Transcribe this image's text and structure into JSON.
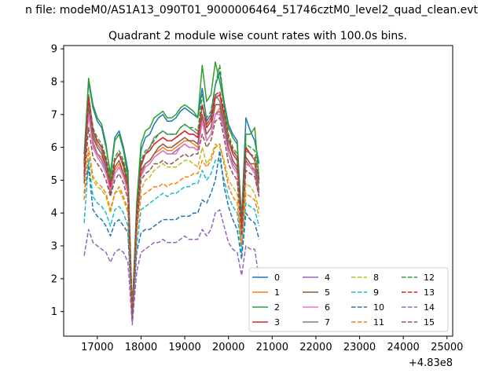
{
  "figure": {
    "suptitle": "n file: modeM0/AS1A13_090T01_9000006464_51746cztM0_level2_quad_clean.evt",
    "title": "Quadrant 2 module wise count rates with 100.0s bins.",
    "offset_label": "+4.83e8"
  },
  "chart_data": {
    "type": "line",
    "title": "Quadrant 2 module wise count rates with 100.0s bins.",
    "xlabel": "",
    "ylabel": "",
    "x_offset": 483000000,
    "xlim": [
      16230,
      25130
    ],
    "ylim": [
      0.25,
      9.1
    ],
    "x_ticks": [
      17000,
      18000,
      19000,
      20000,
      21000,
      22000,
      23000,
      24000,
      25000
    ],
    "y_ticks": [
      1,
      2,
      3,
      4,
      5,
      6,
      7,
      8,
      9
    ],
    "x_start": 16700,
    "x_step": 100,
    "n_points": 41,
    "grid": false,
    "legend": {
      "placement": "lower right",
      "columns": 4
    },
    "series": [
      {
        "name": "0",
        "color": "#1f77b4",
        "dash": "solid",
        "values": [
          5.8,
          8.0,
          7.2,
          6.8,
          6.6,
          6.0,
          5.2,
          6.3,
          6.5,
          6.0,
          5.3,
          1.0,
          4.0,
          5.9,
          6.3,
          6.4,
          6.7,
          6.9,
          7.0,
          6.8,
          6.8,
          6.9,
          7.1,
          7.2,
          7.1,
          7.0,
          6.9,
          7.8,
          6.8,
          7.0,
          7.9,
          8.3,
          7.4,
          6.7,
          6.4,
          6.2,
          3.8,
          6.9,
          6.5,
          6.2,
          5.5
        ]
      },
      {
        "name": "1",
        "color": "#ff7f0e",
        "dash": "solid",
        "values": [
          5.4,
          7.0,
          6.2,
          5.8,
          5.7,
          5.4,
          4.9,
          5.3,
          5.5,
          5.2,
          4.8,
          0.8,
          3.6,
          5.2,
          5.5,
          5.6,
          5.8,
          5.9,
          6.0,
          5.9,
          5.9,
          6.0,
          6.1,
          6.2,
          6.2,
          6.1,
          6.0,
          6.9,
          6.2,
          6.4,
          7.0,
          7.2,
          6.7,
          6.0,
          5.6,
          5.4,
          3.4,
          5.7,
          5.5,
          5.3,
          4.6
        ]
      },
      {
        "name": "2",
        "color": "#2ca02c",
        "dash": "solid",
        "values": [
          5.6,
          8.1,
          7.3,
          6.9,
          6.7,
          6.1,
          5.1,
          6.2,
          6.4,
          5.9,
          5.1,
          1.0,
          4.3,
          6.1,
          6.5,
          6.6,
          6.9,
          7.0,
          7.1,
          6.9,
          6.9,
          7.0,
          7.2,
          7.3,
          7.2,
          7.1,
          6.9,
          8.5,
          7.4,
          7.6,
          8.6,
          8.0,
          7.3,
          6.6,
          6.3,
          6.1,
          3.7,
          6.4,
          6.4,
          6.6,
          5.0
        ]
      },
      {
        "name": "3",
        "color": "#d62728",
        "dash": "solid",
        "values": [
          5.5,
          7.6,
          6.5,
          6.2,
          6.0,
          5.6,
          4.9,
          5.6,
          5.8,
          5.5,
          4.9,
          0.9,
          3.9,
          5.5,
          5.8,
          5.9,
          6.1,
          6.2,
          6.3,
          6.2,
          6.2,
          6.3,
          6.4,
          6.5,
          6.4,
          6.4,
          6.3,
          7.3,
          6.6,
          6.8,
          7.5,
          7.6,
          7.0,
          6.2,
          5.8,
          5.6,
          3.6,
          6.0,
          5.8,
          5.6,
          4.9
        ]
      },
      {
        "name": "4",
        "color": "#9467bd",
        "dash": "solid",
        "values": [
          5.2,
          7.2,
          6.1,
          5.8,
          5.6,
          5.3,
          4.6,
          5.2,
          5.4,
          5.1,
          4.6,
          0.9,
          3.7,
          5.2,
          5.4,
          5.5,
          5.7,
          5.8,
          5.9,
          5.8,
          5.8,
          5.9,
          6.0,
          6.1,
          6.0,
          6.0,
          5.9,
          6.8,
          6.2,
          6.4,
          7.0,
          7.1,
          6.6,
          5.8,
          5.5,
          5.3,
          3.4,
          5.6,
          5.4,
          5.3,
          4.6
        ]
      },
      {
        "name": "5",
        "color": "#8c564b",
        "dash": "solid",
        "values": [
          5.1,
          7.3,
          6.3,
          6.0,
          5.8,
          5.4,
          4.6,
          5.4,
          5.6,
          5.2,
          4.6,
          0.8,
          3.8,
          5.3,
          5.5,
          5.6,
          5.8,
          6.0,
          6.1,
          6.0,
          6.0,
          6.1,
          6.2,
          6.3,
          6.2,
          6.2,
          6.1,
          7.0,
          6.4,
          6.6,
          7.3,
          7.3,
          6.8,
          6.0,
          5.6,
          5.4,
          3.5,
          5.7,
          5.5,
          5.5,
          4.7
        ]
      },
      {
        "name": "6",
        "color": "#e377c2",
        "dash": "solid",
        "values": [
          5.3,
          7.0,
          6.0,
          5.7,
          5.5,
          5.2,
          4.7,
          5.2,
          5.4,
          5.1,
          4.6,
          0.9,
          3.6,
          5.1,
          5.4,
          5.5,
          5.7,
          5.8,
          5.9,
          5.8,
          5.8,
          5.8,
          6.0,
          6.1,
          6.0,
          6.0,
          5.9,
          6.8,
          6.2,
          6.4,
          7.0,
          7.0,
          6.5,
          5.8,
          5.4,
          5.2,
          3.4,
          5.5,
          5.4,
          5.2,
          4.5
        ]
      },
      {
        "name": "7",
        "color": "#7f7f7f",
        "dash": "solid",
        "values": [
          5.0,
          7.4,
          6.4,
          6.1,
          5.9,
          5.5,
          4.8,
          5.6,
          5.8,
          5.4,
          4.8,
          0.9,
          3.9,
          5.4,
          5.8,
          6.0,
          6.3,
          6.4,
          6.5,
          6.4,
          6.4,
          6.4,
          6.6,
          6.7,
          6.6,
          6.5,
          6.4,
          7.3,
          6.7,
          6.9,
          7.6,
          7.4,
          6.9,
          6.2,
          5.9,
          5.7,
          3.6,
          5.9,
          5.8,
          5.6,
          4.9
        ]
      },
      {
        "name": "8",
        "color": "#bcbd22",
        "dash": "dashed",
        "values": [
          4.6,
          5.8,
          5.0,
          4.8,
          4.7,
          4.5,
          4.0,
          4.6,
          4.7,
          4.4,
          4.0,
          0.8,
          3.3,
          4.7,
          5.0,
          5.1,
          5.3,
          5.4,
          5.5,
          5.4,
          5.4,
          5.4,
          5.5,
          5.6,
          5.6,
          5.5,
          5.4,
          6.0,
          5.5,
          5.7,
          6.1,
          6.0,
          5.6,
          5.0,
          4.8,
          4.6,
          3.0,
          4.9,
          4.8,
          4.6,
          4.1
        ]
      },
      {
        "name": "9",
        "color": "#17becf",
        "dash": "dashed",
        "values": [
          3.7,
          5.6,
          4.5,
          4.3,
          4.2,
          4.0,
          3.6,
          4.1,
          4.2,
          4.0,
          3.6,
          0.7,
          3.0,
          4.1,
          4.2,
          4.3,
          4.4,
          4.5,
          4.6,
          4.5,
          4.6,
          4.6,
          4.7,
          4.8,
          4.8,
          4.9,
          4.9,
          5.3,
          5.0,
          5.2,
          5.6,
          5.6,
          5.0,
          4.5,
          4.2,
          4.0,
          2.8,
          4.3,
          4.2,
          4.1,
          3.6
        ]
      },
      {
        "name": "10",
        "color": "#1f77b4",
        "dash": "dashed",
        "values": [
          4.6,
          5.4,
          4.1,
          3.9,
          3.8,
          3.6,
          3.3,
          3.7,
          3.8,
          3.6,
          3.4,
          0.7,
          2.8,
          3.4,
          3.5,
          3.5,
          3.6,
          3.7,
          3.8,
          3.8,
          3.8,
          3.8,
          3.9,
          3.9,
          3.9,
          4.0,
          4.0,
          4.4,
          4.3,
          4.6,
          5.0,
          5.9,
          4.8,
          4.2,
          3.8,
          3.5,
          2.6,
          4.0,
          3.8,
          3.7,
          3.2
        ]
      },
      {
        "name": "11",
        "color": "#ff7f0e",
        "dash": "dashed",
        "values": [
          4.4,
          6.0,
          5.1,
          4.9,
          4.8,
          4.6,
          4.1,
          4.6,
          4.8,
          4.5,
          4.1,
          0.8,
          3.4,
          4.5,
          4.6,
          4.7,
          4.8,
          4.8,
          4.9,
          4.8,
          4.9,
          4.9,
          5.0,
          5.1,
          5.1,
          5.2,
          5.2,
          5.6,
          5.4,
          5.6,
          6.0,
          6.1,
          5.5,
          4.8,
          4.5,
          4.3,
          3.0,
          4.6,
          4.5,
          4.4,
          3.9
        ]
      },
      {
        "name": "12",
        "color": "#2ca02c",
        "dash": "dashed",
        "values": [
          5.4,
          7.6,
          6.6,
          6.3,
          6.1,
          5.7,
          5.0,
          5.7,
          5.9,
          5.6,
          5.0,
          0.9,
          4.0,
          5.6,
          5.9,
          6.0,
          6.2,
          6.4,
          6.5,
          6.4,
          6.4,
          6.4,
          6.6,
          6.7,
          6.6,
          6.6,
          6.5,
          7.6,
          6.9,
          7.1,
          7.9,
          8.5,
          7.3,
          6.4,
          6.0,
          5.8,
          3.7,
          6.1,
          6.0,
          5.9,
          5.2
        ]
      },
      {
        "name": "13",
        "color": "#d62728",
        "dash": "dashed",
        "values": [
          5.2,
          7.5,
          6.5,
          6.2,
          6.0,
          5.6,
          4.8,
          5.6,
          5.8,
          5.4,
          4.8,
          0.9,
          3.9,
          5.5,
          5.8,
          5.9,
          6.1,
          6.2,
          6.3,
          6.2,
          6.2,
          6.3,
          6.4,
          6.5,
          6.4,
          6.4,
          6.3,
          7.3,
          6.7,
          6.9,
          7.6,
          7.7,
          7.1,
          6.3,
          5.9,
          5.7,
          3.6,
          6.0,
          5.8,
          5.7,
          5.0
        ]
      },
      {
        "name": "14",
        "color": "#9467bd",
        "dash": "dashed",
        "values": [
          2.7,
          3.5,
          3.1,
          3.0,
          2.9,
          2.8,
          2.5,
          2.8,
          2.9,
          2.8,
          2.5,
          0.6,
          2.2,
          2.8,
          2.9,
          3.0,
          3.1,
          3.1,
          3.2,
          3.1,
          3.1,
          3.1,
          3.2,
          3.3,
          3.2,
          3.2,
          3.2,
          3.5,
          3.3,
          3.5,
          4.0,
          4.1,
          3.6,
          3.1,
          2.9,
          2.8,
          2.1,
          3.0,
          2.9,
          2.9,
          2.0
        ]
      },
      {
        "name": "15",
        "color": "#8c564b",
        "dash": "dashed",
        "values": [
          4.9,
          6.6,
          5.7,
          5.5,
          5.3,
          5.0,
          4.5,
          5.0,
          5.2,
          4.9,
          4.4,
          0.8,
          3.6,
          5.0,
          5.2,
          5.3,
          5.5,
          5.5,
          5.6,
          5.5,
          5.5,
          5.6,
          5.7,
          5.8,
          5.7,
          5.8,
          5.8,
          6.4,
          6.0,
          6.2,
          6.8,
          6.9,
          6.3,
          5.5,
          5.2,
          5.0,
          3.3,
          5.3,
          5.2,
          5.1,
          4.5
        ]
      }
    ]
  }
}
